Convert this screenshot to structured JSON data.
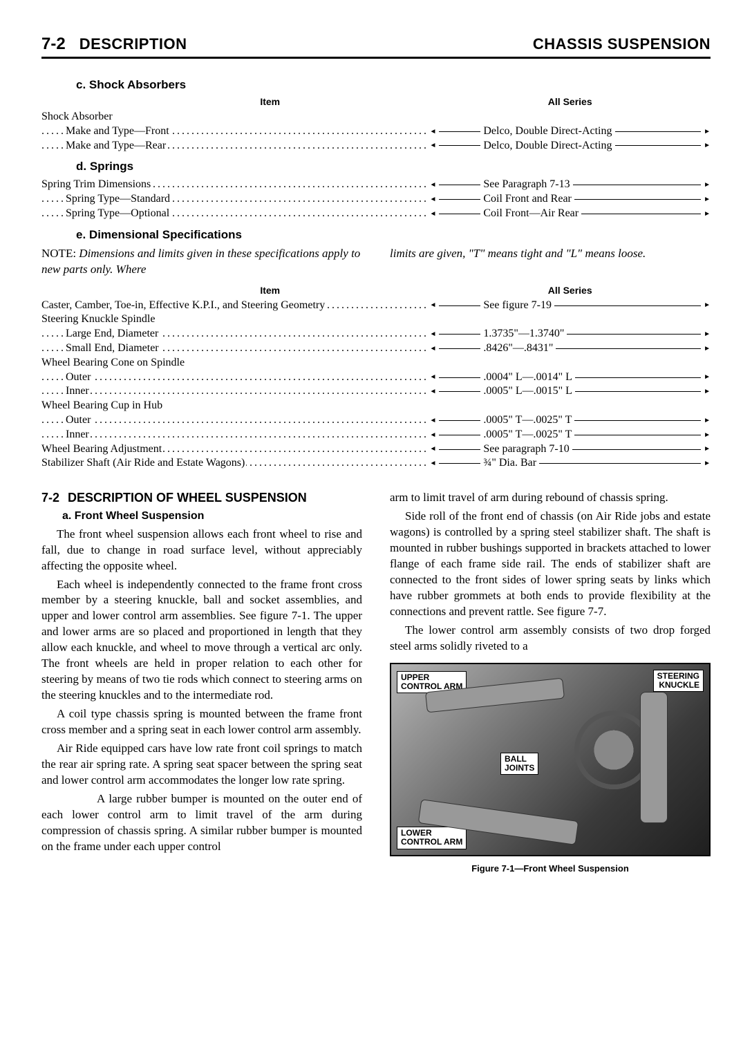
{
  "header": {
    "page_number": "7-2",
    "left_title": "DESCRIPTION",
    "right_title": "CHASSIS SUSPENSION"
  },
  "spec_sections": {
    "shock_absorbers": {
      "letter": "c.",
      "title": "Shock Absorbers",
      "col_item": "Item",
      "col_series": "All Series",
      "group_label": "Shock Absorber",
      "rows": [
        {
          "label": "Make and Type—Front",
          "value": "Delco, Double Direct-Acting"
        },
        {
          "label": "Make and Type—Rear",
          "value": "Delco, Double Direct-Acting"
        }
      ]
    },
    "springs": {
      "letter": "d.",
      "title": "Springs",
      "rows": [
        {
          "label": "Spring Trim Dimensions",
          "value": "See Paragraph 7-13",
          "indent": 0
        },
        {
          "label": "Spring Type—Standard",
          "value": "Coil Front and Rear",
          "indent": 1
        },
        {
          "label": "Spring Type—Optional",
          "value": "Coil Front—Air Rear",
          "indent": 1
        }
      ]
    },
    "dimensional": {
      "letter": "e.",
      "title": "Dimensional Specifications",
      "note_lead": "NOTE:",
      "note_left": "Dimensions and limits given in these specifications apply to new parts only. Where",
      "note_right": "limits are given, \"T\" means tight and \"L\" means loose.",
      "col_item": "Item",
      "col_series": "All Series",
      "rows": [
        {
          "label": "Caster, Camber, Toe-in, Effective K.P.I., and Steering Geometry",
          "value": "See figure 7-19",
          "indent": 0
        },
        {
          "label": "Steering Knuckle Spindle",
          "value": "",
          "indent": 0,
          "no_value": true
        },
        {
          "label": "Large End, Diameter",
          "value": "1.3735\"—1.3740\"",
          "indent": 1
        },
        {
          "label": "Small End, Diameter",
          "value": ".8426\"—.8431\"",
          "indent": 1
        },
        {
          "label": "Wheel Bearing Cone on Spindle",
          "value": "",
          "indent": 0,
          "no_value": true
        },
        {
          "label": "Outer",
          "value": ".0004\" L—.0014\" L",
          "indent": 1
        },
        {
          "label": "Inner",
          "value": ".0005\" L—.0015\" L",
          "indent": 1
        },
        {
          "label": "Wheel Bearing Cup in Hub",
          "value": "",
          "indent": 0,
          "no_value": true
        },
        {
          "label": "Outer",
          "value": ".0005\" T—.0025\" T",
          "indent": 1
        },
        {
          "label": "Inner",
          "value": ".0005\" T—.0025\" T",
          "indent": 1
        },
        {
          "label": "Wheel Bearing Adjustment",
          "value": "See paragraph 7-10",
          "indent": 0
        },
        {
          "label": "Stabilizer Shaft (Air Ride and Estate Wagons)",
          "value": "¾\" Dia. Bar",
          "indent": 0
        }
      ]
    }
  },
  "section_7_2": {
    "number": "7-2",
    "title": "DESCRIPTION OF WHEEL SUSPENSION",
    "sub_a": {
      "letter": "a.",
      "title": "Front Wheel Suspension"
    },
    "paragraphs_left": [
      "The front wheel suspension allows each front wheel to rise and fall, due to change in road surface level, without appreciably affecting the opposite wheel.",
      "Each wheel is independently connected to the frame front cross member by a steering knuckle, ball and socket assemblies, and upper and lower control arm assemblies. See figure 7-1. The upper and lower arms are so placed and proportioned in length that they allow each knuckle, and wheel to move through a vertical arc only. The front wheels are held in proper relation to each other for steering by means of two tie rods which connect to steering arms on the steering knuckles and to the intermediate rod.",
      "A coil type chassis spring is mounted between the frame front cross member and a spring seat in each lower control arm assembly.",
      "Air Ride equipped cars have low rate front coil springs to match the rear air spring rate. A spring seat spacer between the spring seat and lower control arm accommodates the longer low rate spring.",
      "A large rubber bumper is mounted on the outer end of each lower control arm to limit travel of the arm during compression of chassis spring. A similar rubber bumper is mounted on the frame under each upper control"
    ],
    "paragraphs_right": [
      "arm to limit travel of arm during rebound of chassis spring.",
      "Side roll of the front end of chassis (on Air Ride jobs and estate wagons) is controlled by a spring steel stabilizer shaft. The shaft is mounted in rubber bushings supported in brackets attached to lower flange of each frame side rail. The ends of stabilizer shaft are connected to the front sides of lower spring seats by links which have rubber grommets at both ends to provide flexibility at the connections and prevent rattle. See figure 7-7.",
      "The lower control arm assembly consists of two drop forged steel arms solidly riveted to a"
    ]
  },
  "figure": {
    "labels": {
      "upper_arm": "UPPER\nCONTROL ARM",
      "steering_knuckle": "STEERING\nKNUCKLE",
      "ball_joints": "BALL\nJOINTS",
      "lower_arm": "LOWER\nCONTROL ARM"
    },
    "caption": "Figure 7-1—Front Wheel Suspension"
  },
  "colors": {
    "text": "#000000",
    "bg": "#ffffff",
    "rule": "#000000",
    "fig_dark": "#1f1f1f",
    "fig_mid": "#6e6e6e",
    "fig_light": "#b5b5b5"
  },
  "typography": {
    "heading_family": "Arial, sans-serif",
    "body_family": "Times New Roman, serif",
    "page_num_size_pt": 18,
    "title_size_pt": 16,
    "section_size_pt": 14,
    "body_size_pt": 12
  }
}
